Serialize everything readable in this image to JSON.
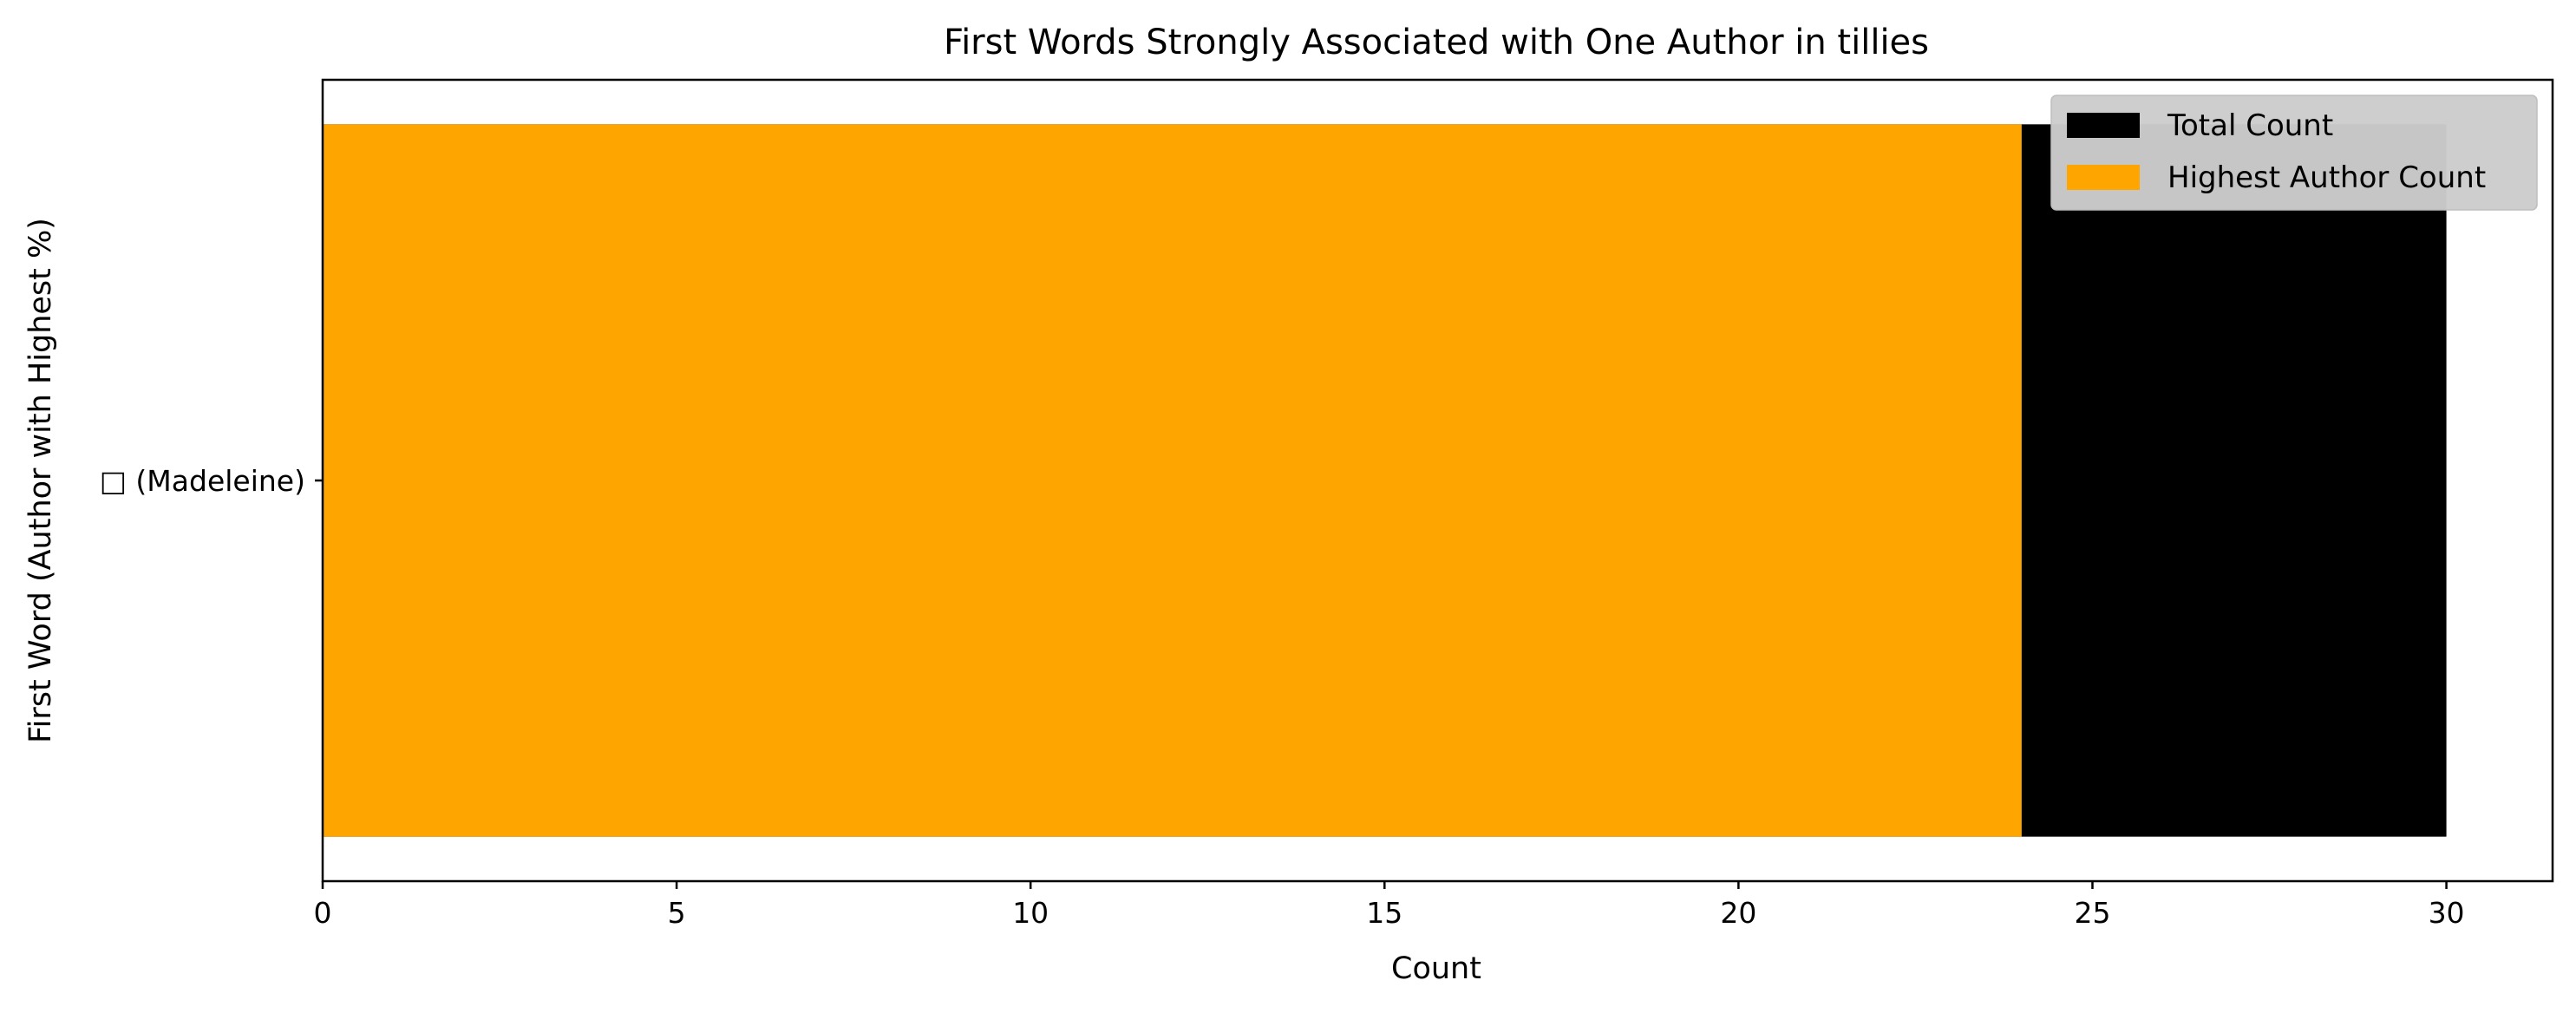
{
  "chart_data": {
    "type": "bar",
    "orientation": "horizontal",
    "title": "First Words Strongly Associated with One Author in tillies",
    "xlabel": "Count",
    "ylabel": "First Word (Author with Highest %)",
    "categories": [
      "□ (Madeleine)"
    ],
    "series": [
      {
        "name": "Total Count",
        "values": [
          30
        ],
        "color": "#000000"
      },
      {
        "name": "Highest Author Count",
        "values": [
          24
        ],
        "color": "#FFA500"
      }
    ],
    "xlim": [
      0,
      31.5
    ],
    "xticks": [
      0,
      5,
      10,
      15,
      20,
      25,
      30
    ],
    "grid": false,
    "legend_position": "top-right"
  }
}
